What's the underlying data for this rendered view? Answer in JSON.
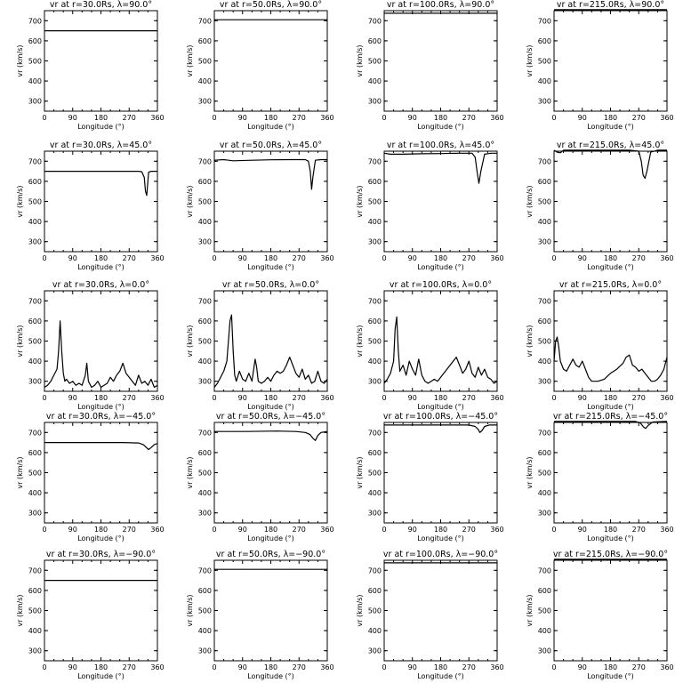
{
  "chart_data": [
    {
      "type": "line",
      "title": "vr at r=30.0Rs, λ=90.0°",
      "xlabel": "Longitude (°)",
      "ylabel": "vr (km/s)",
      "xlim": [
        0,
        360
      ],
      "ylim": [
        250,
        750
      ],
      "xticks": [
        "0",
        "90",
        "180",
        "270",
        "360"
      ],
      "yticks": [
        "300",
        "400",
        "500",
        "600",
        "700"
      ],
      "series": [
        {
          "x": [
            0,
            360
          ],
          "y": [
            650,
            650
          ]
        }
      ]
    },
    {
      "type": "line",
      "title": "vr at r=50.0Rs, λ=90.0°",
      "xlabel": "Longitude (°)",
      "ylabel": "vr (km/s)",
      "xlim": [
        0,
        360
      ],
      "ylim": [
        250,
        750
      ],
      "xticks": [
        "0",
        "90",
        "180",
        "270",
        "360"
      ],
      "yticks": [
        "300",
        "400",
        "500",
        "600",
        "700"
      ],
      "series": [
        {
          "x": [
            0,
            360
          ],
          "y": [
            705,
            705
          ]
        }
      ]
    },
    {
      "type": "line",
      "title": "vr at r=100.0Rs, λ=90.0°",
      "xlabel": "Longitude (°)",
      "ylabel": "vr (km/s)",
      "xlim": [
        0,
        360
      ],
      "ylim": [
        250,
        750
      ],
      "xticks": [
        "0",
        "90",
        "180",
        "270",
        "360"
      ],
      "yticks": [
        "300",
        "400",
        "500",
        "600",
        "700"
      ],
      "series": [
        {
          "x": [
            0,
            360
          ],
          "y": [
            737,
            737
          ]
        }
      ]
    },
    {
      "type": "line",
      "title": "vr at r=215.0Rs, λ=90.0°",
      "xlabel": "Longitude (°)",
      "ylabel": "vr (km/s)",
      "xlim": [
        0,
        360
      ],
      "ylim": [
        250,
        750
      ],
      "xticks": [
        "0",
        "90",
        "180",
        "270",
        "360"
      ],
      "yticks": [
        "300",
        "400",
        "500",
        "600",
        "700"
      ],
      "series": [
        {
          "x": [
            0,
            360
          ],
          "y": [
            755,
            755
          ]
        }
      ]
    },
    {
      "type": "line",
      "title": "vr at r=30.0Rs, λ=45.0°",
      "xlabel": "Longitude (°)",
      "ylabel": "vr (km/s)",
      "xlim": [
        0,
        360
      ],
      "ylim": [
        250,
        750
      ],
      "xticks": [
        "0",
        "90",
        "180",
        "270",
        "360"
      ],
      "yticks": [
        "300",
        "400",
        "500",
        "600",
        "700"
      ],
      "series": [
        {
          "x": [
            0,
            300,
            310,
            318,
            322,
            326,
            332,
            340,
            360
          ],
          "y": [
            650,
            650,
            648,
            620,
            550,
            530,
            645,
            650,
            650
          ]
        }
      ]
    },
    {
      "type": "line",
      "title": "vr at r=50.0Rs, λ=45.0°",
      "xlabel": "Longitude (°)",
      "ylabel": "vr (km/s)",
      "xlim": [
        0,
        360
      ],
      "ylim": [
        250,
        750
      ],
      "xticks": [
        "0",
        "90",
        "180",
        "270",
        "360"
      ],
      "yticks": [
        "300",
        "400",
        "500",
        "600",
        "700"
      ],
      "series": [
        {
          "x": [
            0,
            30,
            60,
            120,
            180,
            240,
            290,
            300,
            306,
            310,
            314,
            322,
            340,
            360
          ],
          "y": [
            705,
            708,
            702,
            705,
            707,
            708,
            708,
            700,
            650,
            560,
            620,
            705,
            708,
            708
          ]
        }
      ]
    },
    {
      "type": "line",
      "title": "vr at r=100.0Rs, λ=45.0°",
      "xlabel": "Longitude (°)",
      "ylabel": "vr (km/s)",
      "xlim": [
        0,
        360
      ],
      "ylim": [
        250,
        750
      ],
      "xticks": [
        "0",
        "90",
        "180",
        "270",
        "360"
      ],
      "yticks": [
        "300",
        "400",
        "500",
        "600",
        "700"
      ],
      "series": [
        {
          "x": [
            0,
            20,
            60,
            120,
            180,
            240,
            280,
            290,
            296,
            302,
            308,
            320,
            340,
            360
          ],
          "y": [
            740,
            735,
            735,
            737,
            738,
            740,
            740,
            720,
            650,
            590,
            650,
            735,
            740,
            740
          ]
        }
      ]
    },
    {
      "type": "line",
      "title": "vr at r=215.0Rs, λ=45.0°",
      "xlabel": "Longitude (°)",
      "ylabel": "vr (km/s)",
      "xlim": [
        0,
        360
      ],
      "ylim": [
        250,
        750
      ],
      "xticks": [
        "0",
        "90",
        "180",
        "270",
        "360"
      ],
      "yticks": [
        "300",
        "400",
        "500",
        "600",
        "700"
      ],
      "series": [
        {
          "x": [
            0,
            10,
            20,
            30,
            60,
            120,
            180,
            240,
            270,
            278,
            284,
            290,
            296,
            308,
            330,
            360
          ],
          "y": [
            755,
            745,
            742,
            755,
            755,
            755,
            755,
            755,
            750,
            700,
            630,
            615,
            650,
            745,
            755,
            755
          ]
        }
      ]
    },
    {
      "type": "line",
      "title": "vr at r=30.0Rs, λ=0.0°",
      "xlabel": "Longitude (°)",
      "ylabel": "vr (km/s)",
      "xlim": [
        0,
        360
      ],
      "ylim": [
        250,
        750
      ],
      "xticks": [
        "0",
        "90",
        "180",
        "270",
        "360"
      ],
      "yticks": [
        "300",
        "400",
        "500",
        "600",
        "700"
      ],
      "series": [
        {
          "x": [
            0,
            10,
            20,
            30,
            40,
            45,
            50,
            55,
            60,
            65,
            70,
            80,
            90,
            100,
            110,
            120,
            130,
            135,
            140,
            150,
            160,
            170,
            180,
            190,
            200,
            210,
            220,
            230,
            240,
            250,
            260,
            270,
            280,
            290,
            300,
            310,
            320,
            330,
            340,
            350,
            360
          ],
          "y": [
            270,
            280,
            300,
            330,
            360,
            450,
            600,
            450,
            340,
            300,
            310,
            290,
            300,
            280,
            290,
            280,
            330,
            390,
            300,
            270,
            280,
            300,
            270,
            280,
            290,
            320,
            300,
            330,
            350,
            390,
            340,
            320,
            300,
            280,
            330,
            290,
            300,
            280,
            310,
            270,
            280
          ]
        }
      ]
    },
    {
      "type": "line",
      "title": "vr at r=50.0Rs, λ=0.0°",
      "xlabel": "Longitude (°)",
      "ylabel": "vr (km/s)",
      "xlim": [
        0,
        360
      ],
      "ylim": [
        250,
        750
      ],
      "xticks": [
        "0",
        "90",
        "180",
        "270",
        "360"
      ],
      "yticks": [
        "300",
        "400",
        "500",
        "600",
        "700"
      ],
      "series": [
        {
          "x": [
            0,
            10,
            20,
            30,
            40,
            50,
            55,
            60,
            65,
            70,
            80,
            90,
            100,
            110,
            120,
            130,
            135,
            140,
            150,
            160,
            170,
            180,
            190,
            200,
            210,
            220,
            230,
            240,
            250,
            260,
            270,
            280,
            290,
            300,
            310,
            320,
            330,
            340,
            350,
            360
          ],
          "y": [
            270,
            290,
            320,
            350,
            400,
            600,
            630,
            450,
            330,
            300,
            350,
            310,
            300,
            340,
            300,
            410,
            370,
            300,
            290,
            300,
            320,
            300,
            330,
            350,
            340,
            350,
            380,
            420,
            380,
            340,
            320,
            360,
            310,
            330,
            290,
            300,
            350,
            300,
            290,
            310
          ]
        }
      ]
    },
    {
      "type": "line",
      "title": "vr at r=100.0Rs, λ=0.0°",
      "xlabel": "Longitude (°)",
      "ylabel": "vr (km/s)",
      "xlim": [
        0,
        360
      ],
      "ylim": [
        250,
        750
      ],
      "xticks": [
        "0",
        "90",
        "180",
        "270",
        "360"
      ],
      "yticks": [
        "300",
        "400",
        "500",
        "600",
        "700"
      ],
      "series": [
        {
          "x": [
            0,
            10,
            20,
            30,
            35,
            40,
            45,
            50,
            60,
            70,
            80,
            90,
            100,
            110,
            120,
            130,
            140,
            150,
            160,
            170,
            180,
            190,
            200,
            210,
            220,
            230,
            240,
            250,
            260,
            270,
            280,
            290,
            300,
            310,
            320,
            330,
            340,
            350,
            360
          ],
          "y": [
            290,
            310,
            340,
            400,
            560,
            620,
            450,
            350,
            380,
            330,
            400,
            360,
            330,
            410,
            330,
            300,
            290,
            300,
            310,
            300,
            320,
            340,
            360,
            380,
            400,
            420,
            380,
            340,
            360,
            400,
            340,
            320,
            370,
            330,
            360,
            320,
            310,
            290,
            300
          ]
        }
      ]
    },
    {
      "type": "line",
      "title": "vr at r=215.0Rs, λ=0.0°",
      "xlabel": "Longitude (°)",
      "ylabel": "vr (km/s)",
      "xlim": [
        0,
        360
      ],
      "ylim": [
        250,
        750
      ],
      "xticks": [
        "0",
        "90",
        "180",
        "270",
        "360"
      ],
      "yticks": [
        "300",
        "400",
        "500",
        "600",
        "700"
      ],
      "series": [
        {
          "x": [
            0,
            5,
            10,
            15,
            20,
            30,
            40,
            50,
            60,
            70,
            80,
            90,
            100,
            110,
            120,
            140,
            160,
            180,
            200,
            220,
            230,
            240,
            250,
            260,
            270,
            280,
            290,
            300,
            310,
            320,
            330,
            340,
            350,
            360
          ],
          "y": [
            400,
            500,
            520,
            470,
            400,
            360,
            350,
            380,
            410,
            380,
            370,
            400,
            360,
            320,
            300,
            300,
            310,
            340,
            360,
            390,
            420,
            430,
            380,
            370,
            350,
            360,
            340,
            320,
            300,
            300,
            310,
            330,
            360,
            420
          ]
        }
      ]
    },
    {
      "type": "line",
      "title": "vr at r=30.0Rs, λ=−45.0°",
      "xlabel": "Longitude (°)",
      "ylabel": "vr (km/s)",
      "xlim": [
        0,
        360
      ],
      "ylim": [
        250,
        750
      ],
      "xticks": [
        "0",
        "90",
        "180",
        "270",
        "360"
      ],
      "yticks": [
        "300",
        "400",
        "500",
        "600",
        "700"
      ],
      "series": [
        {
          "x": [
            0,
            250,
            300,
            315,
            325,
            332,
            340,
            350,
            360
          ],
          "y": [
            650,
            650,
            648,
            640,
            625,
            615,
            625,
            640,
            645
          ]
        }
      ]
    },
    {
      "type": "line",
      "title": "vr at r=50.0Rs, λ=−45.0°",
      "xlabel": "Longitude (°)",
      "ylabel": "vr (km/s)",
      "xlim": [
        0,
        360
      ],
      "ylim": [
        250,
        750
      ],
      "xticks": [
        "0",
        "90",
        "180",
        "270",
        "360"
      ],
      "yticks": [
        "300",
        "400",
        "500",
        "600",
        "700"
      ],
      "series": [
        {
          "x": [
            0,
            100,
            200,
            260,
            290,
            305,
            315,
            322,
            330,
            340,
            360
          ],
          "y": [
            705,
            705,
            707,
            705,
            700,
            690,
            670,
            660,
            685,
            700,
            705
          ]
        }
      ]
    },
    {
      "type": "line",
      "title": "vr at r=100.0Rs, λ=−45.0°",
      "xlabel": "Longitude (°)",
      "ylabel": "vr (km/s)",
      "xlim": [
        0,
        360
      ],
      "ylim": [
        250,
        750
      ],
      "xticks": [
        "0",
        "90",
        "180",
        "270",
        "360"
      ],
      "yticks": [
        "300",
        "400",
        "500",
        "600",
        "700"
      ],
      "series": [
        {
          "x": [
            0,
            100,
            200,
            270,
            290,
            300,
            305,
            312,
            320,
            335,
            360
          ],
          "y": [
            737,
            737,
            737,
            737,
            730,
            715,
            700,
            710,
            730,
            737,
            737
          ]
        }
      ]
    },
    {
      "type": "line",
      "title": "vr at r=215.0Rs, λ=−45.0°",
      "xlabel": "Longitude (°)",
      "ylabel": "vr (km/s)",
      "xlim": [
        0,
        360
      ],
      "ylim": [
        250,
        750
      ],
      "xticks": [
        "0",
        "90",
        "180",
        "270",
        "360"
      ],
      "yticks": [
        "300",
        "400",
        "500",
        "600",
        "700"
      ],
      "series": [
        {
          "x": [
            0,
            100,
            200,
            260,
            275,
            285,
            292,
            300,
            315,
            360
          ],
          "y": [
            755,
            755,
            755,
            755,
            748,
            728,
            720,
            735,
            752,
            755
          ]
        }
      ]
    },
    {
      "type": "line",
      "title": "vr at r=30.0Rs, λ=−90.0°",
      "xlabel": "Longitude (°)",
      "ylabel": "vr (km/s)",
      "xlim": [
        0,
        360
      ],
      "ylim": [
        250,
        750
      ],
      "xticks": [
        "0",
        "90",
        "180",
        "270",
        "360"
      ],
      "yticks": [
        "300",
        "400",
        "500",
        "600",
        "700"
      ],
      "series": [
        {
          "x": [
            0,
            360
          ],
          "y": [
            650,
            650
          ]
        }
      ]
    },
    {
      "type": "line",
      "title": "vr at r=50.0Rs, λ=−90.0°",
      "xlabel": "Longitude (°)",
      "ylabel": "vr (km/s)",
      "xlim": [
        0,
        360
      ],
      "ylim": [
        250,
        750
      ],
      "xticks": [
        "0",
        "90",
        "180",
        "270",
        "360"
      ],
      "yticks": [
        "300",
        "400",
        "500",
        "600",
        "700"
      ],
      "series": [
        {
          "x": [
            0,
            360
          ],
          "y": [
            705,
            705
          ]
        }
      ]
    },
    {
      "type": "line",
      "title": "vr at r=100.0Rs, λ=−90.0°",
      "xlabel": "Longitude (°)",
      "ylabel": "vr (km/s)",
      "xlim": [
        0,
        360
      ],
      "ylim": [
        250,
        750
      ],
      "xticks": [
        "0",
        "90",
        "180",
        "270",
        "360"
      ],
      "yticks": [
        "300",
        "400",
        "500",
        "600",
        "700"
      ],
      "series": [
        {
          "x": [
            0,
            360
          ],
          "y": [
            737,
            737
          ]
        }
      ]
    },
    {
      "type": "line",
      "title": "vr at r=215.0Rs, λ=−90.0°",
      "xlabel": "Longitude (°)",
      "ylabel": "vr (km/s)",
      "xlim": [
        0,
        360
      ],
      "ylim": [
        250,
        750
      ],
      "xticks": [
        "0",
        "90",
        "180",
        "270",
        "360"
      ],
      "yticks": [
        "300",
        "400",
        "500",
        "600",
        "700"
      ],
      "series": [
        {
          "x": [
            0,
            360
          ],
          "y": [
            755,
            755
          ]
        }
      ]
    }
  ]
}
